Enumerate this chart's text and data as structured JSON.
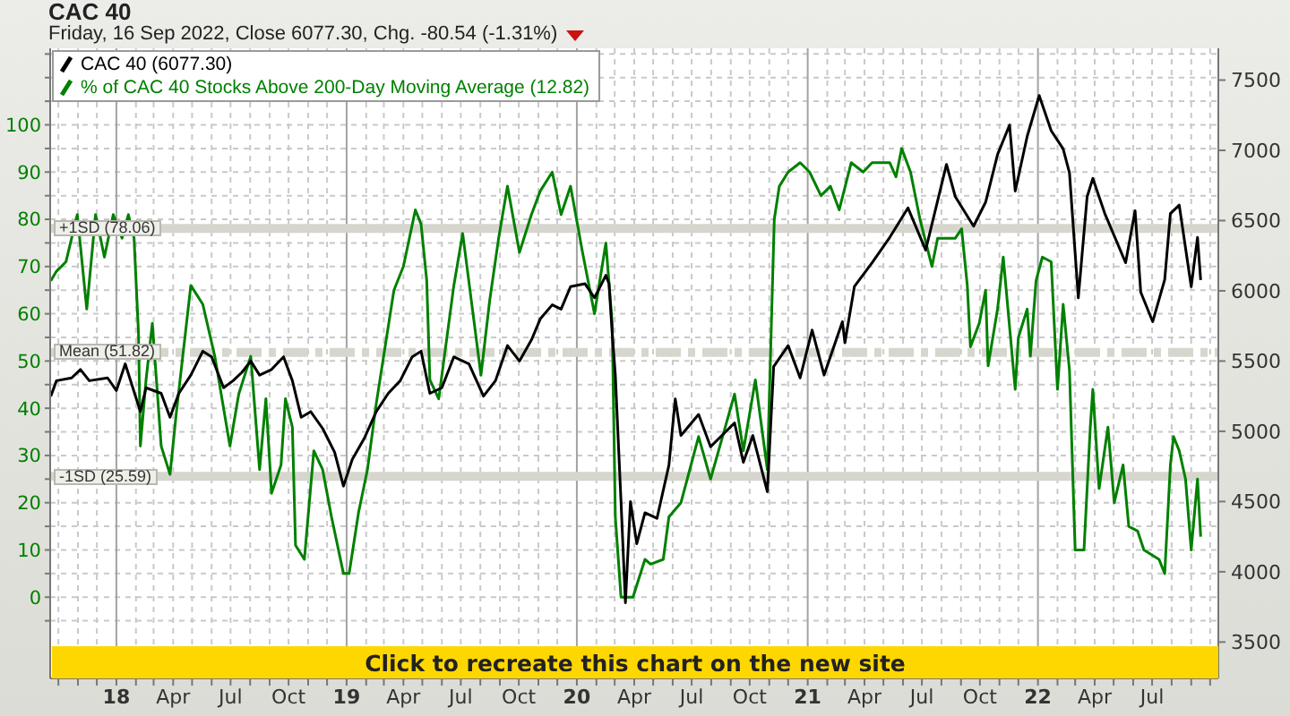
{
  "chart_data": {
    "type": "line",
    "title": "CAC 40",
    "subtitle": "Friday, 16 Sep 2022, Close 6077.30, Chg. -80.54 (-1.31%)",
    "annotations": [
      "Click to recreate this chart on the new site"
    ],
    "series": [
      {
        "name": "CAC 40 (6077.30)",
        "color": "#000000",
        "axis": "y2",
        "x": [
          "2017-09-19",
          "2017-09-28",
          "2017-10-22",
          "2017-11-05",
          "2017-11-19",
          "2017-12-18",
          "2018-01-01",
          "2018-01-15",
          "2018-02-08",
          "2018-02-17",
          "2018-03-13",
          "2018-03-27",
          "2018-04-10",
          "2018-04-29",
          "2018-05-18",
          "2018-06-01",
          "2018-06-20",
          "2018-07-05",
          "2018-07-19",
          "2018-08-02",
          "2018-08-16",
          "2018-09-04",
          "2018-09-23",
          "2018-10-07",
          "2018-10-21",
          "2018-11-05",
          "2018-11-24",
          "2018-12-13",
          "2018-12-27",
          "2019-01-10",
          "2019-01-29",
          "2019-02-17",
          "2019-03-08",
          "2019-03-27",
          "2019-04-15",
          "2019-04-29",
          "2019-05-13",
          "2019-06-01",
          "2019-06-20",
          "2019-07-14",
          "2019-08-06",
          "2019-08-25",
          "2019-09-13",
          "2019-10-02",
          "2019-10-21",
          "2019-11-04",
          "2019-11-23",
          "2019-12-07",
          "2019-12-22",
          "2020-01-14",
          "2020-01-29",
          "2020-02-16",
          "2020-02-21",
          "2020-02-26",
          "2020-03-02",
          "2020-03-11",
          "2020-03-18",
          "2020-03-26",
          "2020-04-05",
          "2020-04-18",
          "2020-05-07",
          "2020-05-26",
          "2020-06-05",
          "2020-06-14",
          "2020-07-12",
          "2020-07-31",
          "2020-09-07",
          "2020-09-21",
          "2020-10-06",
          "2020-10-29",
          "2020-11-08",
          "2020-12-01",
          "2020-12-20",
          "2021-01-08",
          "2021-01-27",
          "2021-02-25",
          "2021-03-01",
          "2021-03-16",
          "2021-04-13",
          "2021-05-11",
          "2021-06-09",
          "2021-07-07",
          "2021-08-09",
          "2021-08-23",
          "2021-09-21",
          "2021-10-10",
          "2021-10-29",
          "2021-11-17",
          "2021-11-26",
          "2021-12-15",
          "2022-01-03",
          "2022-01-22",
          "2022-02-10",
          "2022-02-20",
          "2022-03-06",
          "2022-03-20",
          "2022-03-29",
          "2022-04-17",
          "2022-05-20",
          "2022-06-04",
          "2022-06-13",
          "2022-07-02",
          "2022-07-21",
          "2022-07-30",
          "2022-08-13",
          "2022-09-01",
          "2022-09-11",
          "2022-09-16"
        ],
        "values": [
          5250,
          5360,
          5380,
          5440,
          5360,
          5380,
          5290,
          5480,
          5140,
          5310,
          5270,
          5100,
          5270,
          5400,
          5570,
          5530,
          5310,
          5360,
          5420,
          5500,
          5400,
          5440,
          5530,
          5360,
          5100,
          5140,
          5020,
          4850,
          4610,
          4800,
          4950,
          5140,
          5270,
          5360,
          5530,
          5570,
          5270,
          5310,
          5530,
          5480,
          5250,
          5360,
          5610,
          5500,
          5650,
          5800,
          5900,
          5870,
          6030,
          6050,
          5950,
          6110,
          6050,
          5700,
          5400,
          4500,
          3780,
          4500,
          4200,
          4420,
          4380,
          4760,
          5230,
          4970,
          5120,
          4890,
          5060,
          4780,
          4970,
          4570,
          5460,
          5610,
          5380,
          5720,
          5400,
          5780,
          5630,
          6030,
          6200,
          6380,
          6590,
          6290,
          6900,
          6670,
          6460,
          6630,
          6970,
          7180,
          6710,
          7100,
          7390,
          7140,
          7010,
          6840,
          5950,
          6670,
          6800,
          6550,
          6200,
          6570,
          5990,
          5780,
          6080,
          6550,
          6610,
          6030,
          6380,
          6077.3
        ]
      },
      {
        "name": "% of CAC 40 Stocks Above 200-Day Moving Average (12.82)",
        "color": "#008000",
        "x": [
          "2017-09-19",
          "2017-09-28",
          "2017-10-13",
          "2017-10-31",
          "2017-11-15",
          "2017-11-29",
          "2017-12-13",
          "2017-12-27",
          "2018-01-10",
          "2018-01-20",
          "2018-01-29",
          "2018-02-05",
          "2018-02-08",
          "2018-02-17",
          "2018-02-27",
          "2018-03-13",
          "2018-03-27",
          "2018-04-06",
          "2018-04-29",
          "2018-05-18",
          "2018-06-06",
          "2018-06-30",
          "2018-07-14",
          "2018-08-02",
          "2018-08-16",
          "2018-08-26",
          "2018-09-04",
          "2018-09-19",
          "2018-09-26",
          "2018-10-07",
          "2018-10-12",
          "2018-10-26",
          "2018-11-10",
          "2018-11-24",
          "2018-12-08",
          "2018-12-27",
          "2019-01-05",
          "2019-01-20",
          "2019-02-03",
          "2019-02-17",
          "2019-03-03",
          "2019-03-17",
          "2019-04-01",
          "2019-04-20",
          "2019-04-29",
          "2019-05-08",
          "2019-05-13",
          "2019-05-27",
          "2019-06-20",
          "2019-07-04",
          "2019-08-02",
          "2019-08-16",
          "2019-08-30",
          "2019-09-13",
          "2019-10-02",
          "2019-10-21",
          "2019-11-04",
          "2019-11-23",
          "2019-12-07",
          "2019-12-22",
          "2020-01-10",
          "2020-01-29",
          "2020-02-16",
          "2020-02-26",
          "2020-03-02",
          "2020-03-11",
          "2020-03-30",
          "2020-04-18",
          "2020-04-27",
          "2020-05-17",
          "2020-05-26",
          "2020-06-14",
          "2020-06-28",
          "2020-07-12",
          "2020-07-31",
          "2020-08-19",
          "2020-09-07",
          "2020-09-21",
          "2020-10-10",
          "2020-10-29",
          "2020-11-09",
          "2020-11-17",
          "2020-12-01",
          "2020-12-20",
          "2021-01-04",
          "2021-01-22",
          "2021-02-06",
          "2021-02-20",
          "2021-03-11",
          "2021-03-30",
          "2021-04-13",
          "2021-05-11",
          "2021-05-21",
          "2021-05-30",
          "2021-06-13",
          "2021-06-28",
          "2021-07-17",
          "2021-07-26",
          "2021-08-23",
          "2021-09-02",
          "2021-09-11",
          "2021-09-16",
          "2021-09-30",
          "2021-10-10",
          "2021-10-14",
          "2021-10-29",
          "2021-11-07",
          "2021-11-26",
          "2021-12-01",
          "2021-12-15",
          "2021-12-20",
          "2021-12-29",
          "2022-01-08",
          "2022-01-22",
          "2022-02-01",
          "2022-02-10",
          "2022-02-20",
          "2022-03-01",
          "2022-03-15",
          "2022-03-25",
          "2022-03-29",
          "2022-04-08",
          "2022-04-22",
          "2022-05-02",
          "2022-05-16",
          "2022-05-25",
          "2022-06-08",
          "2022-06-18",
          "2022-07-12",
          "2022-07-21",
          "2022-07-30",
          "2022-08-04",
          "2022-08-13",
          "2022-08-23",
          "2022-09-01",
          "2022-09-11",
          "2022-09-16"
        ],
        "values": [
          67,
          69,
          71,
          81,
          61,
          81,
          72,
          81,
          76,
          81,
          76,
          56,
          32,
          46,
          58,
          32,
          26,
          39,
          66,
          62,
          51,
          32,
          43,
          51,
          27,
          42,
          22,
          28,
          42,
          36,
          11,
          8,
          31,
          27,
          17,
          5,
          5,
          18,
          27,
          41,
          53,
          65,
          70,
          82,
          79,
          67,
          46,
          42,
          66,
          77,
          47,
          63,
          76,
          87,
          73,
          81,
          86,
          90,
          81,
          87,
          73,
          60,
          75,
          58,
          17,
          0,
          0,
          8,
          7,
          8,
          17,
          20,
          27,
          34,
          25,
          34,
          43,
          31,
          46,
          27,
          80,
          87,
          90,
          92,
          90,
          85,
          87,
          82,
          92,
          90,
          92,
          92,
          89,
          95,
          90,
          80,
          70,
          76,
          76,
          78,
          66,
          53,
          58,
          65,
          49,
          61,
          72,
          44,
          55,
          61,
          51,
          67,
          72,
          71,
          44,
          62,
          48,
          10,
          10,
          36,
          44,
          23,
          36,
          20,
          28,
          15,
          14,
          10,
          8,
          5,
          28,
          34,
          31,
          25,
          10,
          25,
          12.82
        ]
      }
    ],
    "xlim": [
      "2017-09-18",
      "2022-10-14"
    ],
    "xticks": [
      {
        "value": "2017-10",
        "label": null
      },
      {
        "value": "2017-11",
        "label": null
      },
      {
        "value": "2017-12",
        "label": null
      },
      {
        "value": "2018-01",
        "label": "18"
      },
      {
        "value": "2018-02",
        "label": null
      },
      {
        "value": "2018-03",
        "label": null
      },
      {
        "value": "2018-04",
        "label": "Apr"
      },
      {
        "value": "2018-05",
        "label": null
      },
      {
        "value": "2018-06",
        "label": null
      },
      {
        "value": "2018-07",
        "label": "Jul"
      },
      {
        "value": "2018-08",
        "label": null
      },
      {
        "value": "2018-09",
        "label": null
      },
      {
        "value": "2018-10",
        "label": "Oct"
      },
      {
        "value": "2018-11",
        "label": null
      },
      {
        "value": "2018-12",
        "label": null
      },
      {
        "value": "2019-01",
        "label": "19"
      },
      {
        "value": "2019-02",
        "label": null
      },
      {
        "value": "2019-03",
        "label": null
      },
      {
        "value": "2019-04",
        "label": "Apr"
      },
      {
        "value": "2019-05",
        "label": null
      },
      {
        "value": "2019-06",
        "label": null
      },
      {
        "value": "2019-07",
        "label": "Jul"
      },
      {
        "value": "2019-08",
        "label": null
      },
      {
        "value": "2019-09",
        "label": null
      },
      {
        "value": "2019-10",
        "label": "Oct"
      },
      {
        "value": "2019-11",
        "label": null
      },
      {
        "value": "2019-12",
        "label": null
      },
      {
        "value": "2020-01",
        "label": "20"
      },
      {
        "value": "2020-02",
        "label": null
      },
      {
        "value": "2020-03",
        "label": null
      },
      {
        "value": "2020-04",
        "label": "Apr"
      },
      {
        "value": "2020-05",
        "label": null
      },
      {
        "value": "2020-06",
        "label": null
      },
      {
        "value": "2020-07",
        "label": "Jul"
      },
      {
        "value": "2020-08",
        "label": null
      },
      {
        "value": "2020-09",
        "label": null
      },
      {
        "value": "2020-10",
        "label": "Oct"
      },
      {
        "value": "2020-11",
        "label": null
      },
      {
        "value": "2020-12",
        "label": null
      },
      {
        "value": "2021-01",
        "label": "21"
      },
      {
        "value": "2021-02",
        "label": null
      },
      {
        "value": "2021-03",
        "label": null
      },
      {
        "value": "2021-04",
        "label": "Apr"
      },
      {
        "value": "2021-05",
        "label": null
      },
      {
        "value": "2021-06",
        "label": null
      },
      {
        "value": "2021-07",
        "label": "Jul"
      },
      {
        "value": "2021-08",
        "label": null
      },
      {
        "value": "2021-09",
        "label": null
      },
      {
        "value": "2021-10",
        "label": "Oct"
      },
      {
        "value": "2021-11",
        "label": null
      },
      {
        "value": "2021-12",
        "label": null
      },
      {
        "value": "2022-01",
        "label": "22"
      },
      {
        "value": "2022-02",
        "label": null
      },
      {
        "value": "2022-03",
        "label": null
      },
      {
        "value": "2022-04",
        "label": "Apr"
      },
      {
        "value": "2022-05",
        "label": null
      },
      {
        "value": "2022-06",
        "label": null
      },
      {
        "value": "2022-07",
        "label": "Jul"
      },
      {
        "value": "2022-08",
        "label": null
      },
      {
        "value": "2022-09",
        "label": null
      },
      {
        "value": "2022-10",
        "label": null
      }
    ],
    "ylim": [
      -17.2,
      116.2
    ],
    "yticks": [
      {
        "value": -5,
        "label": null
      },
      0,
      {
        "value": 5,
        "label": null
      },
      10,
      {
        "value": 15,
        "label": null
      },
      20,
      {
        "value": 25,
        "label": null
      },
      30,
      {
        "value": 35,
        "label": null
      },
      40,
      {
        "value": 45,
        "label": null
      },
      50,
      {
        "value": 55,
        "label": null
      },
      60,
      {
        "value": 65,
        "label": null
      },
      70,
      {
        "value": 75,
        "label": null
      },
      80,
      {
        "value": 85,
        "label": null
      },
      90,
      {
        "value": 95,
        "label": null
      },
      100,
      {
        "value": 105,
        "label": null
      },
      {
        "value": 110,
        "label": null
      },
      {
        "value": 115,
        "label": null
      }
    ],
    "y2lim": [
      3241,
      7726
    ],
    "y2ticks": [
      3500,
      4000,
      4500,
      5000,
      5500,
      6000,
      6500,
      7000,
      7500
    ],
    "ref_lines": [
      {
        "axis": "y",
        "value": 78.06,
        "label": "+1SD (78.06)",
        "color": "#d6d6ce"
      },
      {
        "axis": "y",
        "value": 51.82,
        "label": "Mean (51.82)",
        "color": "#d6d6ce",
        "line_style": "dashed"
      },
      {
        "axis": "y",
        "value": 25.59,
        "label": "-1SD (25.59)",
        "color": "#d6d6ce"
      }
    ],
    "grid": true,
    "legend": "top left"
  }
}
